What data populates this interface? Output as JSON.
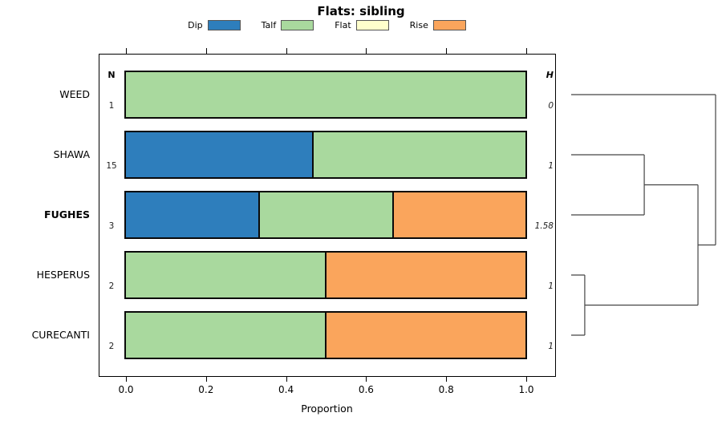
{
  "title": "Flats: sibling",
  "legend": [
    {
      "label": "Dip",
      "color": "#2e7ebc"
    },
    {
      "label": "Talf",
      "color": "#a9d99e"
    },
    {
      "label": "Flat",
      "color": "#ffffcc"
    },
    {
      "label": "Rise",
      "color": "#faa55c"
    }
  ],
  "columns": {
    "n_header": "N",
    "h_header": "H"
  },
  "axis": {
    "label": "Proportion",
    "ticks": [
      {
        "label": "0.0",
        "value": 0.0
      },
      {
        "label": "0.2",
        "value": 0.2
      },
      {
        "label": "0.4",
        "value": 0.4
      },
      {
        "label": "0.6",
        "value": 0.6
      },
      {
        "label": "0.8",
        "value": 0.8
      },
      {
        "label": "1.0",
        "value": 1.0
      }
    ]
  },
  "chart_data": {
    "type": "bar",
    "orientation": "horizontal",
    "stacked": true,
    "title": "Flats: sibling",
    "xlabel": "Proportion",
    "xlim": [
      0,
      1
    ],
    "series_names": [
      "Dip",
      "Talf",
      "Flat",
      "Rise"
    ],
    "categories": [
      "WEED",
      "SHAWA",
      "FUGHES",
      "HESPERUS",
      "CURECANTI"
    ],
    "rows": [
      {
        "label": "WEED",
        "bold": false,
        "n": "1",
        "h": "0",
        "segments": [
          {
            "series": "Talf",
            "value": 1.0
          }
        ]
      },
      {
        "label": "SHAWA",
        "bold": false,
        "n": "15",
        "h": "1",
        "segments": [
          {
            "series": "Dip",
            "value": 0.467
          },
          {
            "series": "Talf",
            "value": 0.533
          }
        ]
      },
      {
        "label": "FUGHES",
        "bold": true,
        "n": "3",
        "h": "1.58",
        "segments": [
          {
            "series": "Dip",
            "value": 0.333
          },
          {
            "series": "Talf",
            "value": 0.334
          },
          {
            "series": "Rise",
            "value": 0.333
          }
        ]
      },
      {
        "label": "HESPERUS",
        "bold": false,
        "n": "2",
        "h": "1",
        "segments": [
          {
            "series": "Talf",
            "value": 0.5
          },
          {
            "series": "Rise",
            "value": 0.5
          }
        ]
      },
      {
        "label": "CURECANTI",
        "bold": false,
        "n": "2",
        "h": "1",
        "segments": [
          {
            "series": "Talf",
            "value": 0.5
          },
          {
            "series": "Rise",
            "value": 0.5
          }
        ]
      }
    ]
  },
  "dendrogram": {
    "leaf_order": [
      "WEED",
      "SHAWA",
      "FUGHES",
      "HESPERUS",
      "CURECANTI"
    ],
    "merges": [
      {
        "children": [
          1,
          2
        ],
        "height": 0.506
      },
      {
        "children": [
          3,
          4
        ],
        "height": 0.094
      },
      {
        "children": [
          5,
          6
        ],
        "height": 0.878
      },
      {
        "children": [
          0,
          7
        ],
        "height": 1.0
      }
    ]
  }
}
